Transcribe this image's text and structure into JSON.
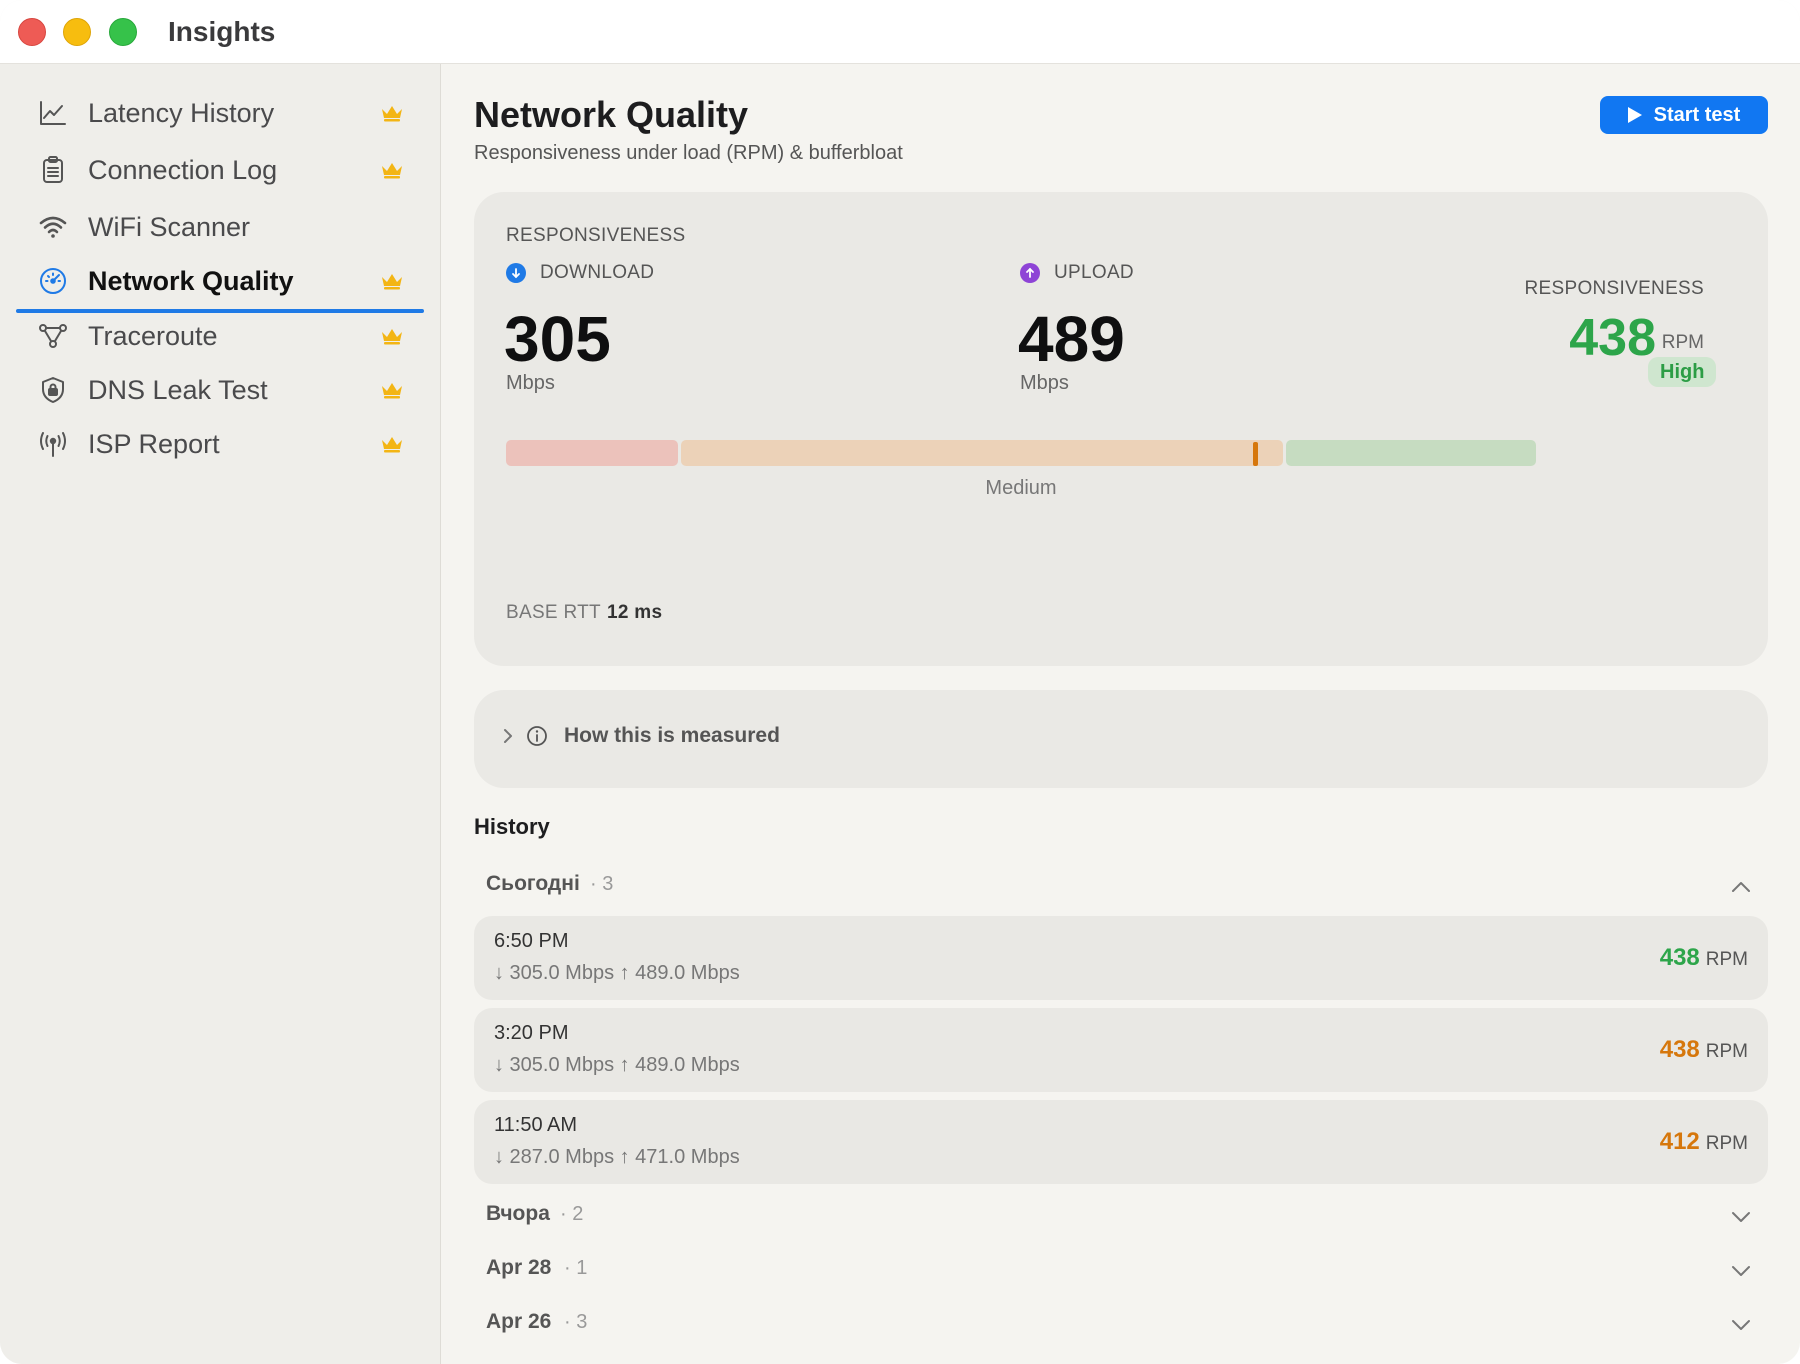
{
  "window": {
    "title": "Insights"
  },
  "sidebar": {
    "items": [
      {
        "label": "Latency History",
        "icon": "chart-line-icon",
        "premium": true,
        "active": false
      },
      {
        "label": "Connection Log",
        "icon": "clipboard-icon",
        "premium": true,
        "active": false
      },
      {
        "label": "WiFi Scanner",
        "icon": "wifi-icon",
        "premium": false,
        "active": false
      },
      {
        "label": "Network Quality",
        "icon": "gauge-icon",
        "premium": true,
        "active": true
      },
      {
        "label": "Traceroute",
        "icon": "route-icon",
        "premium": true,
        "active": false
      },
      {
        "label": "DNS Leak Test",
        "icon": "shield-lock-icon",
        "premium": true,
        "active": false
      },
      {
        "label": "ISP Report",
        "icon": "antenna-icon",
        "premium": true,
        "active": false
      }
    ],
    "accent_color": "#1f7ae6",
    "crown_color": "#f3b514"
  },
  "header": {
    "title": "Network Quality",
    "subtitle": "Responsiveness under load (RPM) & bufferbloat",
    "start_label": "Start test",
    "button_color": "#1177f2"
  },
  "summary": {
    "section_label": "RESPONSIVENESS",
    "download": {
      "label": "DOWNLOAD",
      "value": "305",
      "unit": "Mbps",
      "color": "#1f7ae6"
    },
    "upload": {
      "label": "UPLOAD",
      "value": "489",
      "unit": "Mbps",
      "color": "#8e44d6"
    },
    "responsiveness": {
      "label": "RESPONSIVENESS",
      "value": "438",
      "unit": "RPM",
      "badge": "High",
      "color": "#2da54a"
    },
    "scale": {
      "label": "Medium",
      "marker_fraction": 0.727
    },
    "base_rtt": {
      "label": "BASE RTT",
      "value": "12 ms"
    }
  },
  "how_measured": {
    "label": "How this is measured"
  },
  "history": {
    "title": "History",
    "groups": [
      {
        "name": "Сьогодні",
        "count": "· 3",
        "expanded": true
      },
      {
        "name": "Вчора",
        "count": "· 2",
        "expanded": false
      },
      {
        "name": "Apr 28",
        "count": "· 1",
        "expanded": false
      },
      {
        "name": "Apr 26",
        "count": "· 3",
        "expanded": false
      }
    ],
    "rows": [
      {
        "time": "6:50 PM",
        "speeds": "↓ 305.0 Mbps  ↑ 489.0 Mbps",
        "rpm": "438",
        "unit": "RPM",
        "color": "#2da54a"
      },
      {
        "time": "3:20 PM",
        "speeds": "↓ 305.0 Mbps  ↑ 489.0 Mbps",
        "rpm": "438",
        "unit": "RPM",
        "color": "#d6770c"
      },
      {
        "time": "11:50 AM",
        "speeds": "↓ 287.0 Mbps  ↑ 471.0 Mbps",
        "rpm": "412",
        "unit": "RPM",
        "color": "#d6770c"
      }
    ]
  }
}
